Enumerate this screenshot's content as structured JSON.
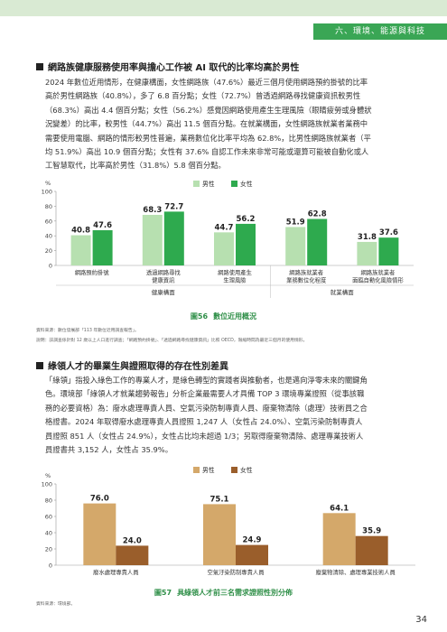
{
  "header": {
    "chapter_tab": "六、環境、能源與科技"
  },
  "section1": {
    "title": "網路族健康服務使用率與擔心工作被 AI 取代的比率均高於男性",
    "paragraph": [
      "2024 年數位近用情形，在健康構面，女性網路族（47.6%）最近三個月使用網路預約掛號的比率",
      "高於男性網路族（40.8%），多了 6.8 百分點；女性（72.7%）曾透過網路尋找健康資訊較男性",
      "（68.3%）高出 4.4 個百分點；女性（56.2%）感覺因網路使用產生生理風險（眼睛疲勞或身體狀",
      "況變差）的比率，較男性（44.7%）高出 11.5 個百分點。在就業構面，女性網路族就業者業務中",
      "需要使用電腦、網路的情形較男性普遍，業務數位化比率平均為 62.8%，比男性網路族就業者（平",
      "均 51.9%）高出 10.9 個百分點；女性有 37.6% 自認工作未來非常可能或還算可能被自動化或人",
      "工智慧取代，比率高於男性（31.8%）5.8 個百分點。"
    ]
  },
  "figure56": {
    "number": "圖56",
    "title": "數位近用概況",
    "source": "資料來源：數位發展部「113 年數位近用調查報告」。",
    "note": "說明：該調查係針對 12 歲以上人口進行調查；「網路預約掛號」、「透過網路尋找健康資訊」比照 OECD，限縮時間為最近三個月的使用情形。"
  },
  "section2": {
    "title": "綠領人才的畢業生與證照取得的存在性別差異",
    "paragraph": [
      "「綠領」指投入綠色工作的專業人才，是綠色轉型的實踐者與推動者，也是邁向淨零未來的關鍵角",
      "色。環境部「綠領人才就業趨勢報告」分析企業最需要人才具備 TOP 3 環境專業證照（從事該職",
      "務的必要資格）為：廢水處理專責人員、空氣污染防制專責人員、廢棄物清除（處理）技術員之合",
      "格證書。2024 年取得廢水處理專責人員證照 1,247 人（女性占 24.0%）、空氣污染防制專責人",
      "員證照 851 人（女性占 24.9%），女性占比均未超過 1/3；另取得廢棄物清除、處理專業技術人",
      "員證書共 3,152 人，女性占 35.9%。"
    ]
  },
  "figure57": {
    "number": "圖57",
    "title": "具綠領人才前三名需求證照性別分佈",
    "source": "資料來源：環境部。"
  },
  "page_number": "34",
  "colors": {
    "accent": "#3aa655",
    "male_fig56": "#b7e0b0",
    "female_fig56": "#2eaa4e",
    "male_fig57": "#d4a86a",
    "female_fig57": "#9a5e2b"
  },
  "chart_data": [
    {
      "type": "bar",
      "y_unit": "%",
      "ylim": [
        0,
        100
      ],
      "yticks": [
        0,
        20,
        40,
        60,
        80,
        100
      ],
      "categories": [
        "網路預約掛號",
        "透過網路尋找健康資訊",
        "網路使用產生生理風險",
        "網路族就業者業務數位化程度",
        "網路族就業者面臨自動化風險情形"
      ],
      "category_lines": [
        [
          "網路預約掛號"
        ],
        [
          "透過網路尋找",
          "健康資訊"
        ],
        [
          "網路使用產生",
          "生理風險"
        ],
        [
          "網路族就業者",
          "業務數位化程度"
        ],
        [
          "網路族就業者",
          "面臨自動化風險情形"
        ]
      ],
      "groups": [
        {
          "label": "健康構面",
          "categories": [
            0,
            1,
            2
          ]
        },
        {
          "label": "就業構面",
          "categories": [
            3,
            4
          ]
        }
      ],
      "series": [
        {
          "name": "男性",
          "values": [
            40.8,
            68.3,
            44.7,
            51.9,
            31.8
          ]
        },
        {
          "name": "女性",
          "values": [
            47.6,
            72.7,
            56.2,
            62.8,
            37.6
          ]
        }
      ],
      "legend": "top-center",
      "grid": false
    },
    {
      "type": "bar",
      "y_unit": "%",
      "ylim": [
        0,
        100
      ],
      "yticks": [
        0,
        20,
        40,
        60,
        80,
        100
      ],
      "categories": [
        "廢水處理專責人員",
        "空氣汙染防制專責人員",
        "廢棄物清除、處理專業技術人員"
      ],
      "series": [
        {
          "name": "男性",
          "values": [
            76.0,
            75.1,
            64.1
          ]
        },
        {
          "name": "女性",
          "values": [
            24.0,
            24.9,
            35.9
          ]
        }
      ],
      "legend": "top-center",
      "grid": false
    }
  ]
}
